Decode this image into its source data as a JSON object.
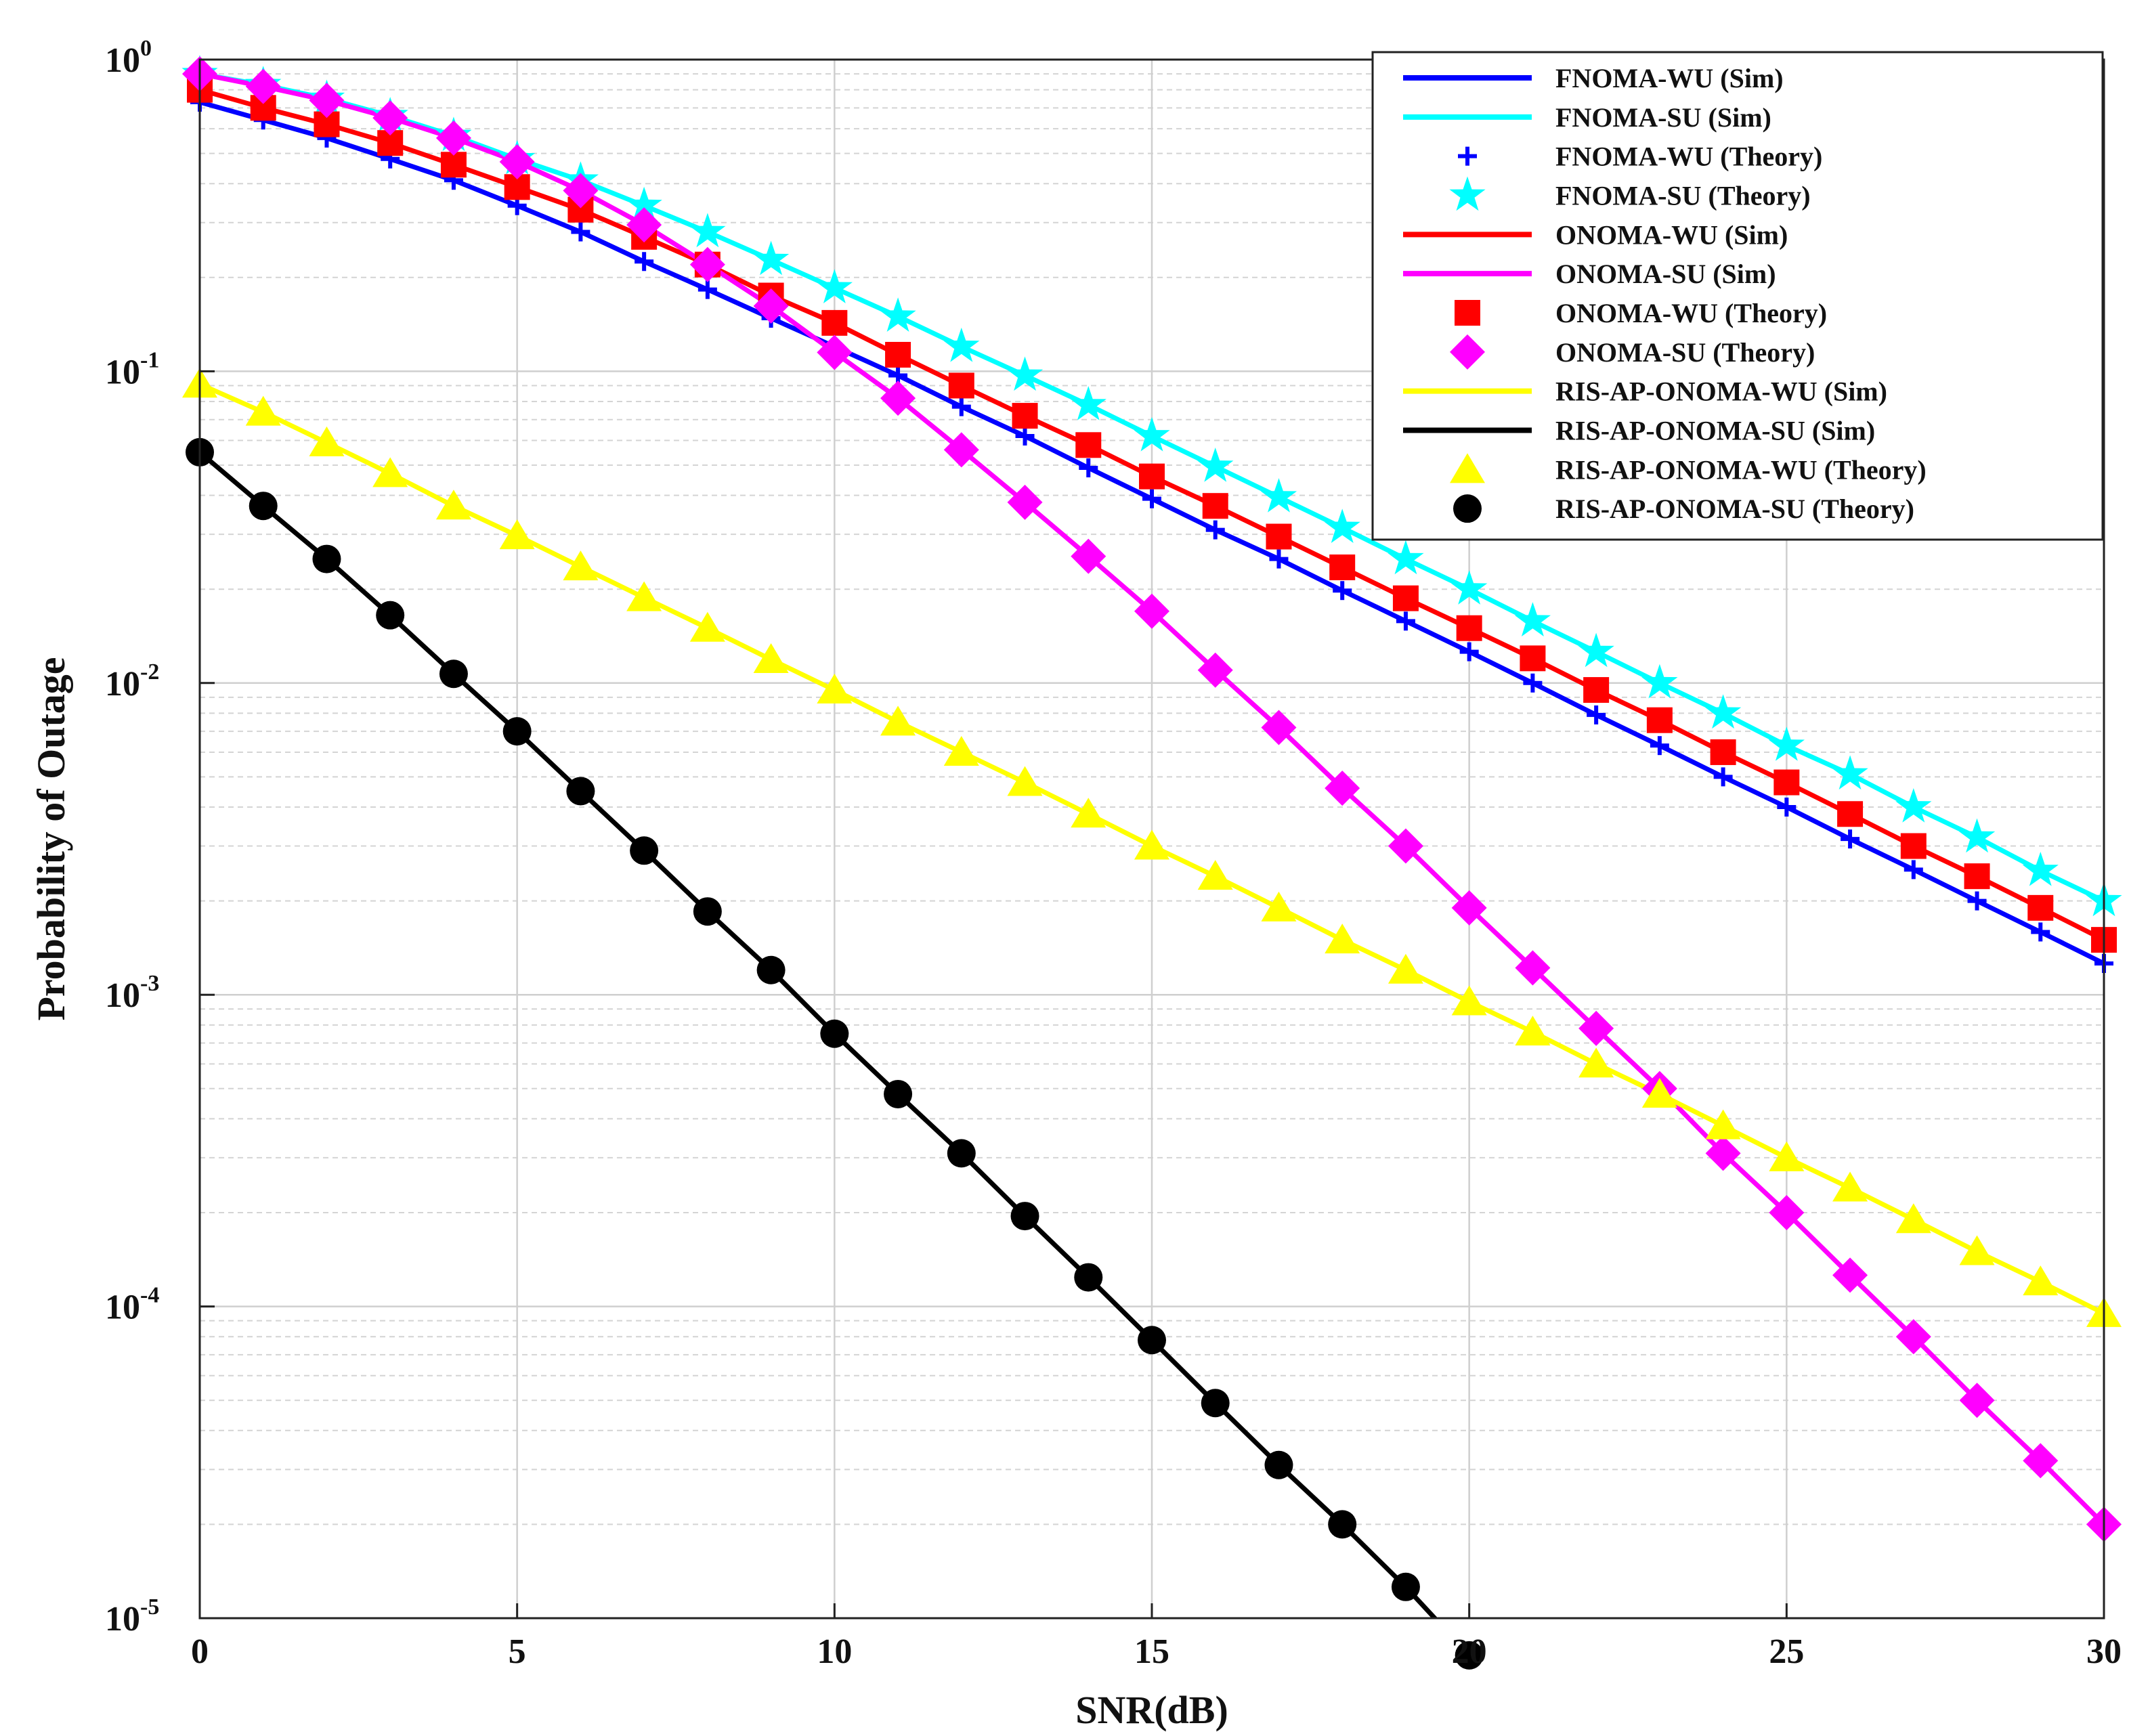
{
  "chart_data": {
    "type": "line",
    "title": "",
    "xlabel": "SNR(dB)",
    "ylabel": "Probability of Outage",
    "xlim": [
      0,
      30
    ],
    "ylim": [
      1e-05,
      1
    ],
    "yscale": "log",
    "grid": true,
    "legend_position": "top-right",
    "xticks": [
      0,
      5,
      10,
      15,
      20,
      25,
      30
    ],
    "yticks": [
      {
        "value": 1,
        "base": "10",
        "exp": "0"
      },
      {
        "value": 0.1,
        "base": "10",
        "exp": "-1"
      },
      {
        "value": 0.01,
        "base": "10",
        "exp": "-2"
      },
      {
        "value": 0.001,
        "base": "10",
        "exp": "-3"
      },
      {
        "value": 0.0001,
        "base": "10",
        "exp": "-4"
      },
      {
        "value": 1e-05,
        "base": "10",
        "exp": "-5"
      }
    ],
    "x": [
      0,
      1,
      2,
      3,
      4,
      5,
      6,
      7,
      8,
      9,
      10,
      11,
      12,
      13,
      14,
      15,
      16,
      17,
      18,
      19,
      20,
      21,
      22,
      23,
      24,
      25,
      26,
      27,
      28,
      29,
      30
    ],
    "series": [
      {
        "name": "FNOMA-WU (Sim)",
        "kind": "line",
        "color": "#0000FF",
        "ref": "fwu"
      },
      {
        "name": "FNOMA-SU (Sim)",
        "kind": "line",
        "color": "#00FFFF",
        "ref": "fsu"
      },
      {
        "name": "FNOMA-WU (Theory)",
        "kind": "marker",
        "marker": "plus",
        "color": "#0000FF",
        "ref": "fwu"
      },
      {
        "name": "FNOMA-SU (Theory)",
        "kind": "marker",
        "marker": "star",
        "color": "#00FFFF",
        "ref": "fsu"
      },
      {
        "name": "ONOMA-WU (Sim)",
        "kind": "line",
        "color": "#FF0000",
        "ref": "owu"
      },
      {
        "name": "ONOMA-SU (Sim)",
        "kind": "line",
        "color": "#FF00FF",
        "ref": "osu"
      },
      {
        "name": "ONOMA-WU (Theory)",
        "kind": "marker",
        "marker": "square",
        "color": "#FF0000",
        "ref": "owu"
      },
      {
        "name": "ONOMA-SU (Theory)",
        "kind": "marker",
        "marker": "diamond",
        "color": "#FF00FF",
        "ref": "osu"
      },
      {
        "name": "RIS-AP-ONOMA-WU (Sim)",
        "kind": "line",
        "color": "#FFFF00",
        "ref": "rwu"
      },
      {
        "name": "RIS-AP-ONOMA-SU (Sim)",
        "kind": "line",
        "color": "#000000",
        "ref": "rsu"
      },
      {
        "name": "RIS-AP-ONOMA-WU (Theory)",
        "kind": "marker",
        "marker": "triangle",
        "color": "#FFFF00",
        "ref": "rwu"
      },
      {
        "name": "RIS-AP-ONOMA-SU (Theory)",
        "kind": "marker",
        "marker": "circle",
        "color": "#000000",
        "ref": "rsu"
      }
    ],
    "values": {
      "fwu": [
        0.73,
        0.64,
        0.56,
        0.48,
        0.41,
        0.34,
        0.28,
        0.225,
        0.183,
        0.148,
        0.12,
        0.097,
        0.077,
        0.062,
        0.049,
        0.039,
        0.031,
        0.025,
        0.0198,
        0.0158,
        0.0126,
        0.01,
        0.0079,
        0.0063,
        0.005,
        0.004,
        0.00316,
        0.00252,
        0.002,
        0.00159,
        0.00126
      ],
      "fsu": [
        0.9,
        0.83,
        0.75,
        0.66,
        0.57,
        0.48,
        0.41,
        0.34,
        0.28,
        0.228,
        0.185,
        0.15,
        0.12,
        0.097,
        0.078,
        0.062,
        0.0495,
        0.0395,
        0.0315,
        0.025,
        0.02,
        0.0158,
        0.0126,
        0.01,
        0.008,
        0.0063,
        0.0051,
        0.004,
        0.0032,
        0.0025,
        0.002
      ],
      "owu": [
        0.8,
        0.7,
        0.62,
        0.54,
        0.46,
        0.39,
        0.33,
        0.27,
        0.22,
        0.175,
        0.143,
        0.113,
        0.09,
        0.072,
        0.058,
        0.046,
        0.037,
        0.0295,
        0.0235,
        0.0187,
        0.015,
        0.012,
        0.0095,
        0.0076,
        0.006,
        0.0048,
        0.0038,
        0.003,
        0.0024,
        0.0019,
        0.0015
      ],
      "osu": [
        0.9,
        0.82,
        0.74,
        0.65,
        0.56,
        0.47,
        0.38,
        0.295,
        0.22,
        0.162,
        0.115,
        0.082,
        0.056,
        0.038,
        0.0255,
        0.017,
        0.011,
        0.0072,
        0.0046,
        0.003,
        0.0019,
        0.00122,
        0.00078,
        0.0005,
        0.00031,
        0.0002,
        0.000126,
        8e-05,
        5e-05,
        3.2e-05,
        2e-05
      ],
      "rwu": [
        0.091,
        0.074,
        0.059,
        0.047,
        0.037,
        0.0297,
        0.0236,
        0.0188,
        0.015,
        0.0119,
        0.0095,
        0.0075,
        0.006,
        0.0048,
        0.0038,
        0.003,
        0.0024,
        0.0019,
        0.0015,
        0.0012,
        0.00095,
        0.00076,
        0.0006,
        0.00048,
        0.00038,
        0.0003,
        0.00024,
        0.00019,
        0.00015,
        0.00012,
        9.5e-05
      ],
      "rsu": [
        0.055,
        0.037,
        0.025,
        0.0165,
        0.0107,
        0.007,
        0.0045,
        0.0029,
        0.00185,
        0.0012,
        0.00075,
        0.00048,
        0.00031,
        0.000195,
        0.000124,
        7.8e-05,
        4.9e-05,
        3.1e-05,
        2e-05,
        1.26e-05,
        7.6e-06
      ]
    }
  }
}
